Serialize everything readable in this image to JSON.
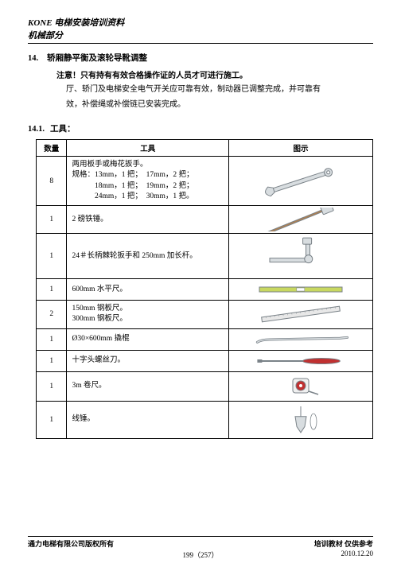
{
  "header": {
    "line1": "KONE 电梯安装培训资料",
    "line2": "机械部分"
  },
  "section": {
    "number": "14.",
    "title": "轿厢静平衡及滚轮导靴调整"
  },
  "notice": "注意！只有持有有效合格操作证的人员才可进行施工。",
  "paragraph1": "厅、轿门及电梯安全电气开关应可靠有效，制动器已调整完成，并可靠有",
  "paragraph2": "效，补偿绳或补偿链已安装完成。",
  "subsection": {
    "number": "14.1.",
    "title": "工具："
  },
  "table": {
    "headers": {
      "qty": "数量",
      "tool": "工具",
      "img": "图示"
    },
    "rows": [
      {
        "qty": "8",
        "desc_lines": [
          "两用板手或梅花扳手。",
          "规格：13mm，1 把；　17mm，2 把；",
          "　　　18mm，1 把；　19mm，2 把；",
          "　　　24mm，1 把；　30mm，1 把。"
        ],
        "height": 48,
        "icon": "wrench"
      },
      {
        "qty": "1",
        "desc_lines": [
          "2 磅铁锤。"
        ],
        "height": 34,
        "icon": "hammer"
      },
      {
        "qty": "1",
        "desc_lines": [
          "24＃长柄棘轮扳手和 250mm 加长杆。"
        ],
        "height": 56,
        "icon": "ratchet"
      },
      {
        "qty": "1",
        "desc_lines": [
          "600mm 水平尺。"
        ],
        "height": 26,
        "icon": "level"
      },
      {
        "qty": "2",
        "desc_lines": [
          "150mm 钢板尺。",
          "300mm 钢板尺。"
        ],
        "height": 30,
        "icon": "ruler"
      },
      {
        "qty": "1",
        "desc_lines": [
          "Ø30×600mm 撬棍"
        ],
        "height": 26,
        "icon": "prybar"
      },
      {
        "qty": "1",
        "desc_lines": [
          "十字头螺丝刀。"
        ],
        "height": 26,
        "icon": "screwdriver"
      },
      {
        "qty": "1",
        "desc_lines": [
          "3m 卷尺。"
        ],
        "height": 36,
        "icon": "tape"
      },
      {
        "qty": "1",
        "desc_lines": [
          "线锤。"
        ],
        "height": 46,
        "icon": "plumb"
      }
    ]
  },
  "footer": {
    "left": "通力电梯有限公司版权所有",
    "right1": "培训教材 仅供参考",
    "center": "199（257）",
    "right2": "2010.12.20"
  },
  "colors": {
    "tool_fill": "#d8dde0",
    "tool_stroke": "#7a8288",
    "accent": "#c03030"
  }
}
